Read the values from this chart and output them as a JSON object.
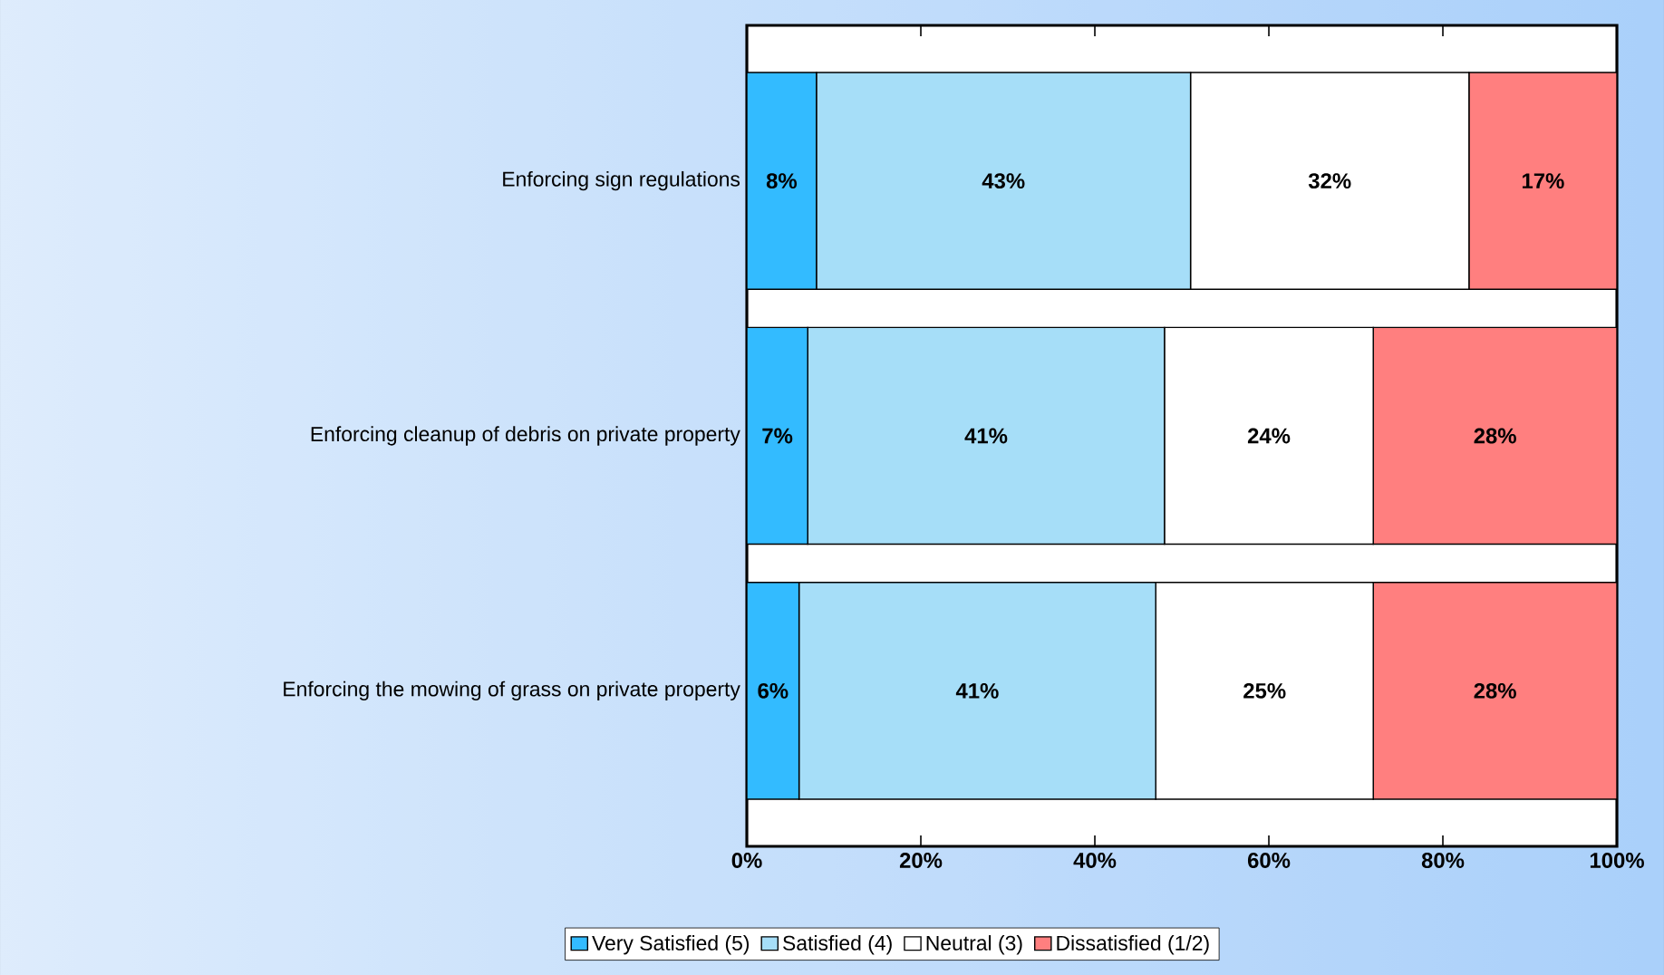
{
  "chart_data": {
    "type": "bar",
    "orientation": "horizontal",
    "stacked": true,
    "categories": [
      "Enforcing sign regulations",
      "Enforcing cleanup of debris on private property",
      "Enforcing the mowing of grass on private property"
    ],
    "series": [
      {
        "name": "Very Satisfied (5)",
        "color": "#33bbff",
        "values": [
          8,
          7,
          6
        ],
        "value_labels": [
          "8%",
          "7%",
          "6%"
        ]
      },
      {
        "name": "Satisfied (4)",
        "color": "#a6def8",
        "values": [
          43,
          41,
          41
        ],
        "value_labels": [
          "43%",
          "41%",
          "41%"
        ]
      },
      {
        "name": "Neutral (3)",
        "color": "#ffffff",
        "values": [
          32,
          24,
          25
        ],
        "value_labels": [
          "32%",
          "24%",
          "25%"
        ]
      },
      {
        "name": "Dissatisfied (1/2)",
        "color": "#ff7f7f",
        "values": [
          17,
          28,
          28
        ],
        "value_labels": [
          "17%",
          "28%",
          "28%"
        ]
      }
    ],
    "xlim": [
      0,
      100
    ],
    "xticks": [
      {
        "value": 0,
        "label": "0%"
      },
      {
        "value": 20,
        "label": "20%"
      },
      {
        "value": 40,
        "label": "40%"
      },
      {
        "value": 60,
        "label": "60%"
      },
      {
        "value": 80,
        "label": "80%"
      },
      {
        "value": 100,
        "label": "100%"
      }
    ],
    "legend": "bottom"
  }
}
